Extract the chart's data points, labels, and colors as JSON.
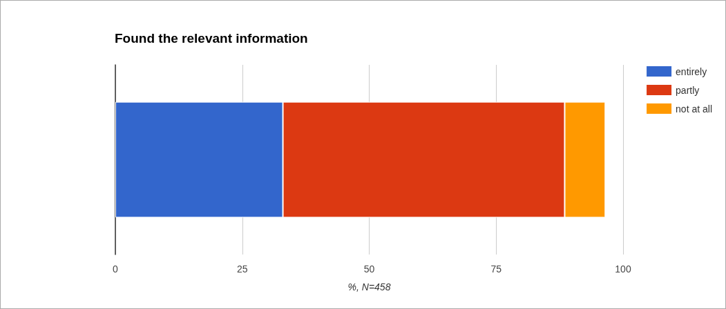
{
  "chart_data": {
    "type": "bar",
    "orientation": "horizontal",
    "stacked": true,
    "title": "Found the relevant information",
    "xlabel": "%, N=458",
    "categories": [
      null
    ],
    "series": [
      {
        "name": "entirely",
        "color": "#3366cc",
        "values": [
          33
        ]
      },
      {
        "name": "partly",
        "color": "#dc3912",
        "values": [
          55.5
        ]
      },
      {
        "name": "not at all",
        "color": "#ff9900",
        "values": [
          8
        ]
      }
    ],
    "xlim": [
      0,
      100
    ],
    "xticks": [
      0,
      25,
      50,
      75,
      100
    ],
    "grid": "x",
    "legend": "top right"
  }
}
